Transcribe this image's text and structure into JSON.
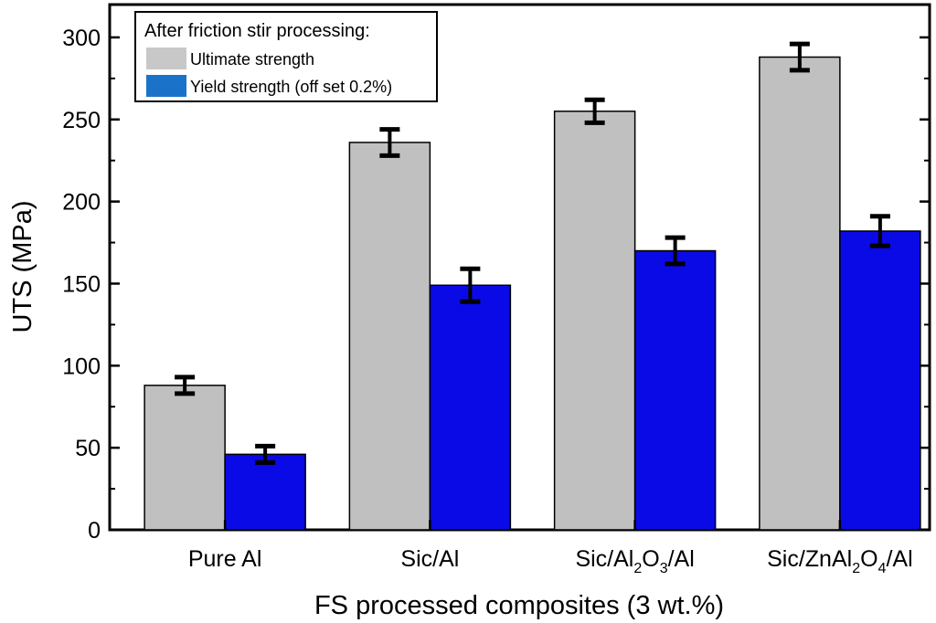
{
  "chart_data": {
    "type": "bar",
    "title": "",
    "xlabel": "FS processed composites (3 wt.%)",
    "ylabel": "UTS (MPa)",
    "ylim": [
      0,
      320
    ],
    "yticks": [
      0,
      50,
      100,
      150,
      200,
      250,
      300
    ],
    "categories": [
      {
        "parts": [
          {
            "t": "Pure Al"
          }
        ]
      },
      {
        "parts": [
          {
            "t": "Sic/Al"
          }
        ]
      },
      {
        "parts": [
          {
            "t": "Sic/Al"
          },
          {
            "t": "2",
            "sub": true
          },
          {
            "t": "O"
          },
          {
            "t": "3",
            "sub": true
          },
          {
            "t": "/Al"
          }
        ]
      },
      {
        "parts": [
          {
            "t": "Sic/ZnAl"
          },
          {
            "t": "2",
            "sub": true
          },
          {
            "t": "O"
          },
          {
            "t": "4",
            "sub": true
          },
          {
            "t": "/Al"
          }
        ]
      }
    ],
    "series": [
      {
        "name": "Ultimate strength",
        "color": "#c0c0c0",
        "values": [
          88,
          236,
          255,
          288
        ],
        "errors": [
          5,
          8,
          7,
          8
        ]
      },
      {
        "name": "Yield strength (off set 0.2%)",
        "color": "#0a0ae6",
        "values": [
          46,
          149,
          170,
          182
        ],
        "errors": [
          5,
          10,
          8,
          9
        ]
      }
    ],
    "legend": {
      "title": "After friction stir processing:",
      "position": "top-left",
      "swatch_colors": [
        "#c8c8c8",
        "#1a73c8"
      ]
    },
    "grid": false
  }
}
